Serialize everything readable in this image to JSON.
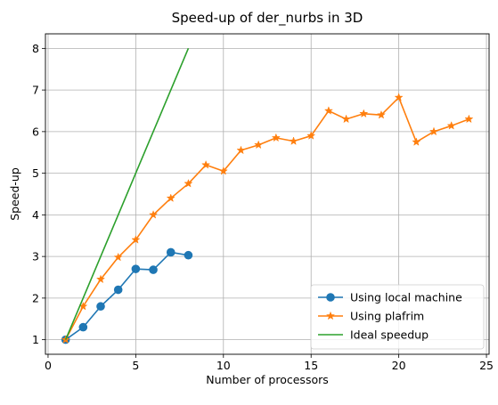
{
  "chart_data": {
    "type": "line",
    "title": "Speed-up of der_nurbs in 3D",
    "xlabel": "Number of processors",
    "ylabel": "Speed-up",
    "xlim": [
      -0.15,
      25.15
    ],
    "ylim": [
      0.65,
      8.35
    ],
    "xticks": [
      0,
      5,
      10,
      15,
      20,
      25
    ],
    "yticks": [
      1,
      2,
      3,
      4,
      5,
      6,
      7,
      8
    ],
    "grid": true,
    "legend_position": "lower-right",
    "series": [
      {
        "name": "Using local machine",
        "color": "#1f77b4",
        "marker": "circle",
        "x": [
          1,
          2,
          3,
          4,
          5,
          6,
          7,
          8
        ],
        "y": [
          1.0,
          1.3,
          1.8,
          2.2,
          2.7,
          2.68,
          3.1,
          3.03
        ]
      },
      {
        "name": "Using plafrim",
        "color": "#ff7f0e",
        "marker": "star",
        "x": [
          1,
          2,
          3,
          4,
          5,
          6,
          7,
          8,
          9,
          10,
          11,
          12,
          13,
          14,
          15,
          16,
          17,
          18,
          19,
          20,
          21,
          22,
          23,
          24
        ],
        "y": [
          1.0,
          1.8,
          2.45,
          2.98,
          3.4,
          4.0,
          4.4,
          4.75,
          5.2,
          5.05,
          5.55,
          5.68,
          5.85,
          5.77,
          5.9,
          6.5,
          6.3,
          6.43,
          6.4,
          6.82,
          5.75,
          6.0,
          6.14,
          6.3
        ]
      },
      {
        "name": "Ideal speedup",
        "color": "#2ca02c",
        "marker": "none",
        "x": [
          1,
          2,
          3,
          4,
          5,
          6,
          7,
          8
        ],
        "y": [
          1,
          2,
          3,
          4,
          5,
          6,
          7,
          8
        ]
      }
    ]
  }
}
